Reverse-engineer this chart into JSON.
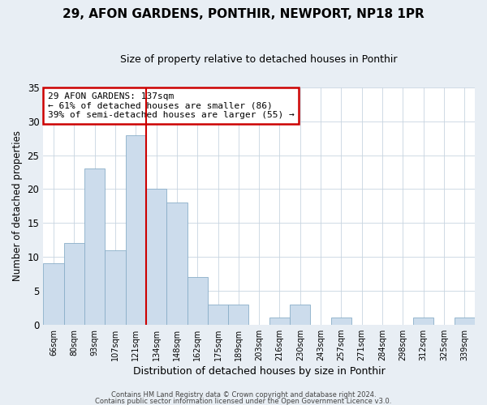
{
  "title": "29, AFON GARDENS, PONTHIR, NEWPORT, NP18 1PR",
  "subtitle": "Size of property relative to detached houses in Ponthir",
  "xlabel": "Distribution of detached houses by size in Ponthir",
  "ylabel": "Number of detached properties",
  "annotation_line1": "29 AFON GARDENS: 137sqm",
  "annotation_line2": "← 61% of detached houses are smaller (86)",
  "annotation_line3": "39% of semi-detached houses are larger (55) →",
  "bar_labels": [
    "66sqm",
    "80sqm",
    "93sqm",
    "107sqm",
    "121sqm",
    "134sqm",
    "148sqm",
    "162sqm",
    "175sqm",
    "189sqm",
    "203sqm",
    "216sqm",
    "230sqm",
    "243sqm",
    "257sqm",
    "271sqm",
    "284sqm",
    "298sqm",
    "312sqm",
    "325sqm",
    "339sqm"
  ],
  "bar_values": [
    9,
    12,
    23,
    11,
    28,
    20,
    18,
    7,
    3,
    3,
    0,
    1,
    3,
    0,
    1,
    0,
    0,
    0,
    1,
    0,
    1
  ],
  "bar_color": "#ccdcec",
  "bar_edgecolor": "#8aaec8",
  "vline_color": "#cc0000",
  "vline_idx": 5,
  "ylim": [
    0,
    35
  ],
  "yticks": [
    0,
    5,
    10,
    15,
    20,
    25,
    30,
    35
  ],
  "annotation_box_edgecolor": "#cc0000",
  "footer1": "Contains HM Land Registry data © Crown copyright and database right 2024.",
  "footer2": "Contains public sector information licensed under the Open Government Licence v3.0.",
  "fig_bg_color": "#e8eef4",
  "plot_bg_color": "#ffffff",
  "grid_color": "#c8d4e0"
}
